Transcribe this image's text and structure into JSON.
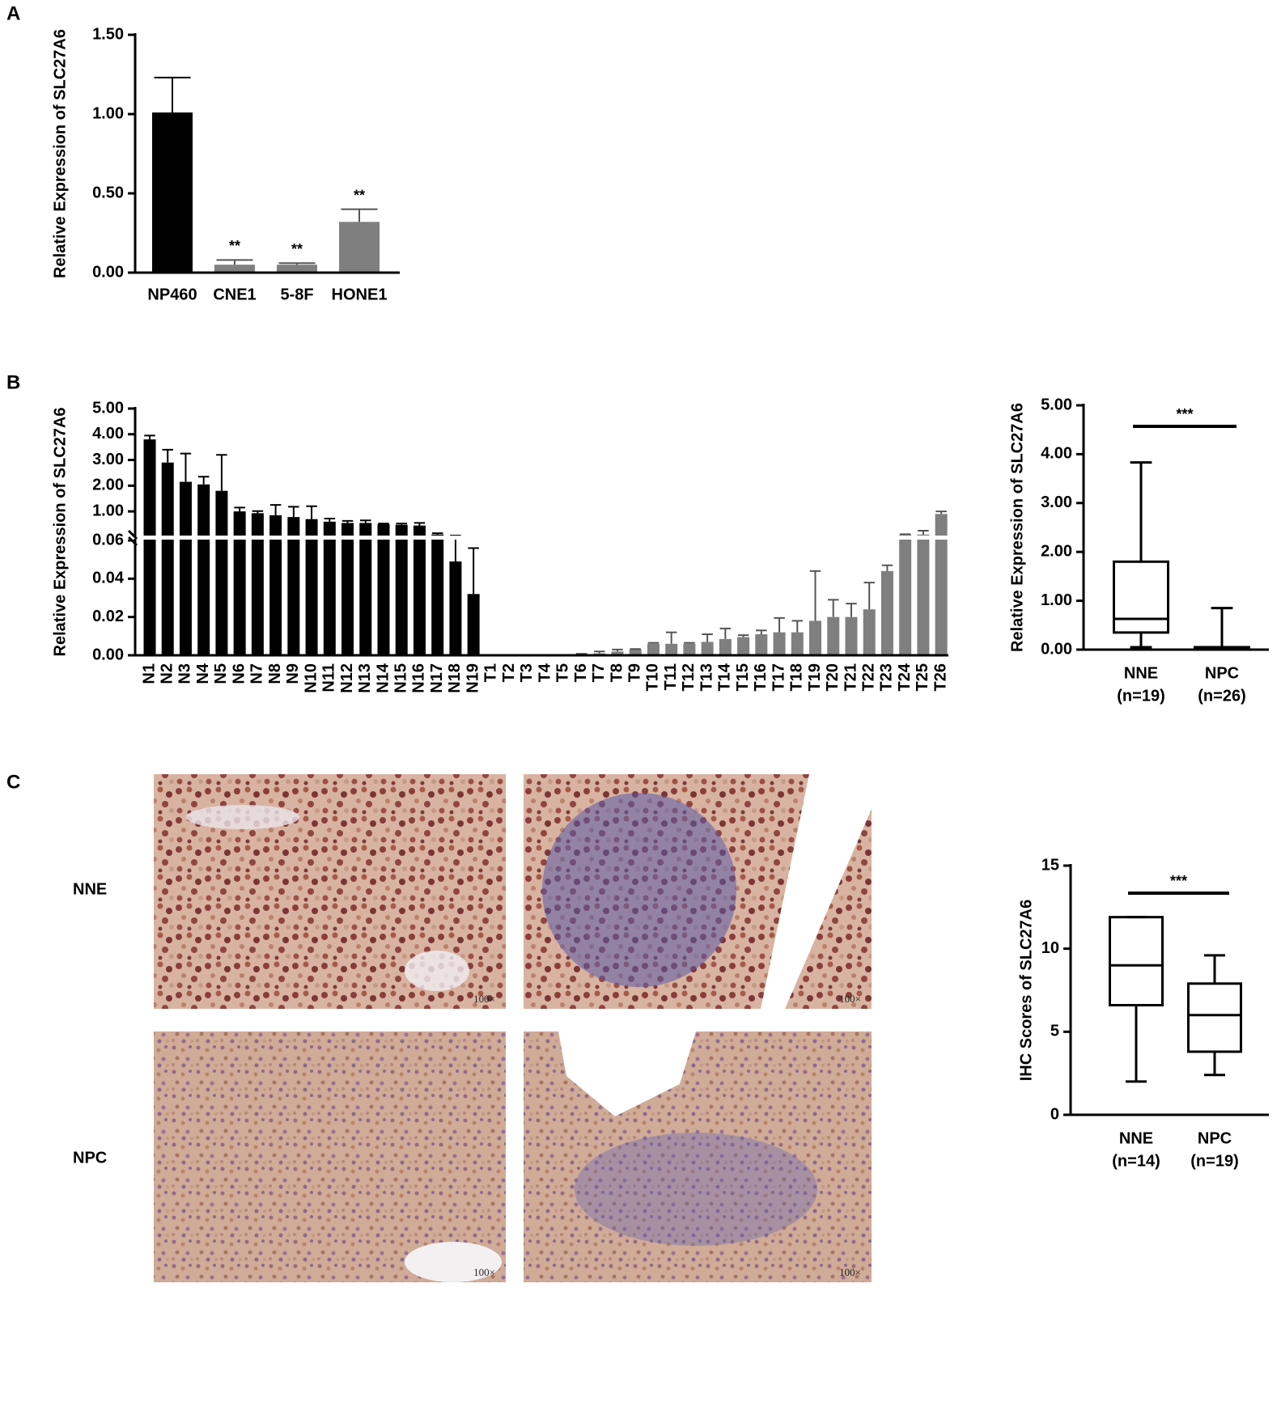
{
  "chart_data": [
    {
      "type": "bar",
      "panel_label": "A",
      "y_label": "Relative Expression of SLC27A6",
      "categories": [
        "NP460",
        "CNE1",
        "5-8F",
        "HONE1"
      ],
      "values": [
        1.01,
        0.05,
        0.05,
        0.32
      ],
      "errors": [
        0.22,
        0.03,
        0.01,
        0.08
      ],
      "colors": [
        "#000000",
        "#7f7f7f",
        "#7f7f7f",
        "#7f7f7f"
      ],
      "significance": [
        null,
        "**",
        "**",
        "**"
      ],
      "ylim": [
        0,
        1.5
      ],
      "yticks": [
        {
          "value": 0,
          "label": "0.00"
        },
        {
          "value": 0.5,
          "label": "0.50"
        },
        {
          "value": 1,
          "label": "1.00"
        },
        {
          "value": 1.5,
          "label": "1.50"
        }
      ]
    },
    {
      "type": "bar",
      "panel_label": "B",
      "y_label": "Relative Expression of  SLC27A6",
      "categories": [
        "N1",
        "N2",
        "N3",
        "N4",
        "N5",
        "N6",
        "N7",
        "N8",
        "N9",
        "N10",
        "N11",
        "N12",
        "N13",
        "N14",
        "N15",
        "N16",
        "N17",
        "N18",
        "N19",
        "T1",
        "T2",
        "T3",
        "T4",
        "T5",
        "T6",
        "T7",
        "T8",
        "T9",
        "T10",
        "T11",
        "T12",
        "T13",
        "T14",
        "T15",
        "T16",
        "T17",
        "T18",
        "T19",
        "T20",
        "T21",
        "T22",
        "T23",
        "T24",
        "T25",
        "T26"
      ],
      "series": [
        {
          "color": "#000000",
          "values": [
            3.8,
            2.9,
            2.15,
            2.05,
            1.8,
            1.0,
            0.93,
            0.85,
            0.78,
            0.7,
            0.6,
            0.55,
            0.55,
            0.5,
            0.48,
            0.45,
            0.1,
            0.049,
            0.032,
            null,
            null,
            null,
            null,
            null,
            null,
            null,
            null,
            null,
            null,
            null,
            null,
            null,
            null,
            null,
            null,
            null,
            null,
            null,
            null,
            null,
            null,
            null,
            null,
            null,
            null
          ],
          "errors": [
            0.15,
            0.5,
            1.1,
            0.3,
            1.4,
            0.15,
            0.08,
            0.4,
            0.4,
            0.5,
            0.12,
            0.08,
            0.1,
            0.03,
            0.05,
            0.1,
            0.05,
            0.012,
            0.024,
            null,
            null,
            null,
            null,
            null,
            null,
            null,
            null,
            null,
            null,
            null,
            null,
            null,
            null,
            null,
            null,
            null,
            null,
            null,
            null,
            null,
            null,
            null,
            null,
            null,
            null
          ]
        },
        {
          "color": "#7f7f7f",
          "values": [
            null,
            null,
            null,
            null,
            null,
            null,
            null,
            null,
            null,
            null,
            null,
            null,
            null,
            null,
            null,
            null,
            null,
            null,
            null,
            0,
            0,
            0,
            0,
            0,
            0.0005,
            0.001,
            0.002,
            0.003,
            0.006,
            0.006,
            0.006,
            0.007,
            0.0085,
            0.0095,
            0.011,
            0.012,
            0.012,
            0.018,
            0.02,
            0.02,
            0.024,
            0.044,
            0.09,
            0.1,
            0.9
          ],
          "errors": [
            null,
            null,
            null,
            null,
            null,
            null,
            null,
            null,
            null,
            null,
            null,
            null,
            null,
            null,
            null,
            null,
            null,
            null,
            null,
            0,
            0,
            0,
            0,
            0,
            0.0003,
            0.001,
            0.001,
            0.0003,
            0.0005,
            0.006,
            0.0005,
            0.004,
            0.0055,
            0.001,
            0.002,
            0.0075,
            0.006,
            0.026,
            0.009,
            0.007,
            0.014,
            0.003,
            0.02,
            0.15,
            0.1
          ]
        }
      ],
      "ylim": [
        0,
        5
      ],
      "ybreak": 0.06,
      "yticks": [
        {
          "value": 0,
          "label": "0.00"
        },
        {
          "value": 0.02,
          "label": "0.02"
        },
        {
          "value": 0.04,
          "label": "0.04"
        },
        {
          "value": 0.06,
          "label": "0.06"
        },
        {
          "value": 1,
          "label": "1.00"
        },
        {
          "value": 2,
          "label": "2.00"
        },
        {
          "value": 3,
          "label": "3.00"
        },
        {
          "value": 4,
          "label": "4.00"
        },
        {
          "value": 5,
          "label": "5.00"
        }
      ]
    },
    {
      "type": "box",
      "y_label": "Relative Expression of SLC27A6",
      "categories": [
        "NNE",
        "NPC"
      ],
      "n_labels": [
        "(n=19)",
        "(n=26)"
      ],
      "min": [
        0.05,
        0
      ],
      "q1": [
        0.35,
        0.01
      ],
      "median": [
        0.63,
        0.02
      ],
      "q3": [
        1.8,
        0.05
      ],
      "max": [
        3.83,
        0.85
      ],
      "significance": "***",
      "ylim": [
        0,
        5
      ],
      "yticks": [
        {
          "value": 0,
          "label": "0.00"
        },
        {
          "value": 1,
          "label": "1.00"
        },
        {
          "value": 2,
          "label": "2.00"
        },
        {
          "value": 3,
          "label": "3.00"
        },
        {
          "value": 4,
          "label": "4.00"
        },
        {
          "value": 5,
          "label": "5.00"
        }
      ]
    },
    {
      "type": "box",
      "panel_label": "C",
      "y_label": "IHC Scores of SLC27A6",
      "categories": [
        "NNE",
        "NPC"
      ],
      "n_labels": [
        "(n=14)",
        "(n=19)"
      ],
      "min": [
        2,
        2.4
      ],
      "q1": [
        6.6,
        3.8
      ],
      "median": [
        9,
        6
      ],
      "q3": [
        11.9,
        7.9
      ],
      "max": [
        11.9,
        9.6
      ],
      "significance": "***",
      "ylim": [
        0,
        15
      ],
      "yticks": [
        0,
        5,
        10,
        15
      ]
    }
  ],
  "ihc_images": {
    "row_labels": [
      "NNE",
      "NPC"
    ],
    "magnifications": [
      "100×",
      "100×",
      "100×",
      "100×"
    ]
  }
}
